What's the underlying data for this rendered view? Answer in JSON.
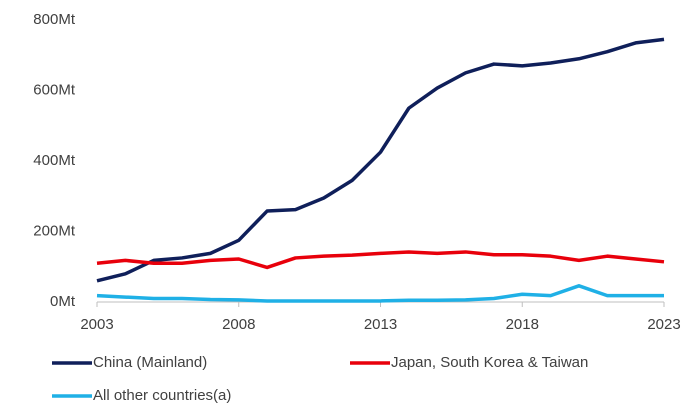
{
  "chart_data": {
    "type": "line",
    "x": [
      2003,
      2004,
      2005,
      2006,
      2007,
      2008,
      2009,
      2010,
      2011,
      2012,
      2013,
      2014,
      2015,
      2016,
      2017,
      2018,
      2019,
      2020,
      2021,
      2022,
      2023
    ],
    "series": [
      {
        "name": "China (Mainland)",
        "color": "#0f1f5a",
        "values": [
          60,
          80,
          118,
          125,
          138,
          175,
          258,
          262,
          295,
          345,
          425,
          550,
          607,
          650,
          675,
          670,
          678,
          690,
          710,
          735,
          745
        ]
      },
      {
        "name": "Japan, South Korea & Taiwan",
        "color": "#e8000b",
        "values": [
          110,
          118,
          110,
          110,
          118,
          122,
          98,
          125,
          130,
          133,
          138,
          142,
          138,
          142,
          134,
          134,
          130,
          118,
          130,
          122,
          114
        ]
      },
      {
        "name": "All other countries(a)",
        "color": "#1fb0e6",
        "values": [
          18,
          14,
          10,
          10,
          7,
          6,
          3,
          3,
          3,
          3,
          3,
          5,
          5,
          6,
          10,
          22,
          18,
          46,
          18,
          18,
          18
        ]
      }
    ],
    "xlim": [
      2003,
      2023
    ],
    "xticks": [
      2003,
      2008,
      2013,
      2018,
      2023
    ],
    "ylim": [
      0,
      800
    ],
    "yticks": [
      {
        "value": 0,
        "label": "0Mt"
      },
      {
        "value": 200,
        "label": "200Mt"
      },
      {
        "value": 400,
        "label": "400Mt"
      },
      {
        "value": 600,
        "label": "600Mt"
      },
      {
        "value": 800,
        "label": "800Mt"
      }
    ],
    "grid": false,
    "legend": "bottom"
  }
}
